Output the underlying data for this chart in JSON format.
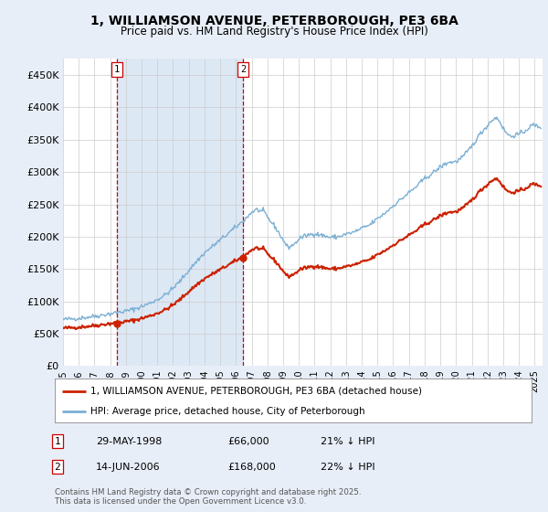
{
  "title1": "1, WILLIAMSON AVENUE, PETERBOROUGH, PE3 6BA",
  "title2": "Price paid vs. HM Land Registry's House Price Index (HPI)",
  "legend_line1": "1, WILLIAMSON AVENUE, PETERBOROUGH, PE3 6BA (detached house)",
  "legend_line2": "HPI: Average price, detached house, City of Peterborough",
  "footnote": "Contains HM Land Registry data © Crown copyright and database right 2025.\nThis data is licensed under the Open Government Licence v3.0.",
  "table_rows": [
    {
      "num": "1",
      "date": "29-MAY-1998",
      "price": "£66,000",
      "hpi": "21% ↓ HPI"
    },
    {
      "num": "2",
      "date": "14-JUN-2006",
      "price": "£168,000",
      "hpi": "22% ↓ HPI"
    }
  ],
  "sale1_year": 1998.41,
  "sale1_price": 66000,
  "sale2_year": 2006.45,
  "sale2_price": 168000,
  "hpi_color": "#7bafd4",
  "price_color": "#cc2200",
  "vline_color": "#cc0000",
  "shade_color": "#dde8f5",
  "bg_color": "#e8eef8",
  "plot_bg": "#ffffff",
  "ylim": [
    0,
    475000
  ],
  "xlim_start": 1995.0,
  "xlim_end": 2025.5,
  "yticks": [
    0,
    50000,
    100000,
    150000,
    200000,
    250000,
    300000,
    350000,
    400000,
    450000
  ],
  "ytick_labels": [
    "£0",
    "£50K",
    "£100K",
    "£150K",
    "£200K",
    "£250K",
    "£300K",
    "£350K",
    "£400K",
    "£450K"
  ],
  "xticks": [
    1995,
    1996,
    1997,
    1998,
    1999,
    2000,
    2001,
    2002,
    2003,
    2004,
    2005,
    2006,
    2007,
    2008,
    2009,
    2010,
    2011,
    2012,
    2013,
    2014,
    2015,
    2016,
    2017,
    2018,
    2019,
    2020,
    2021,
    2022,
    2023,
    2024,
    2025
  ]
}
